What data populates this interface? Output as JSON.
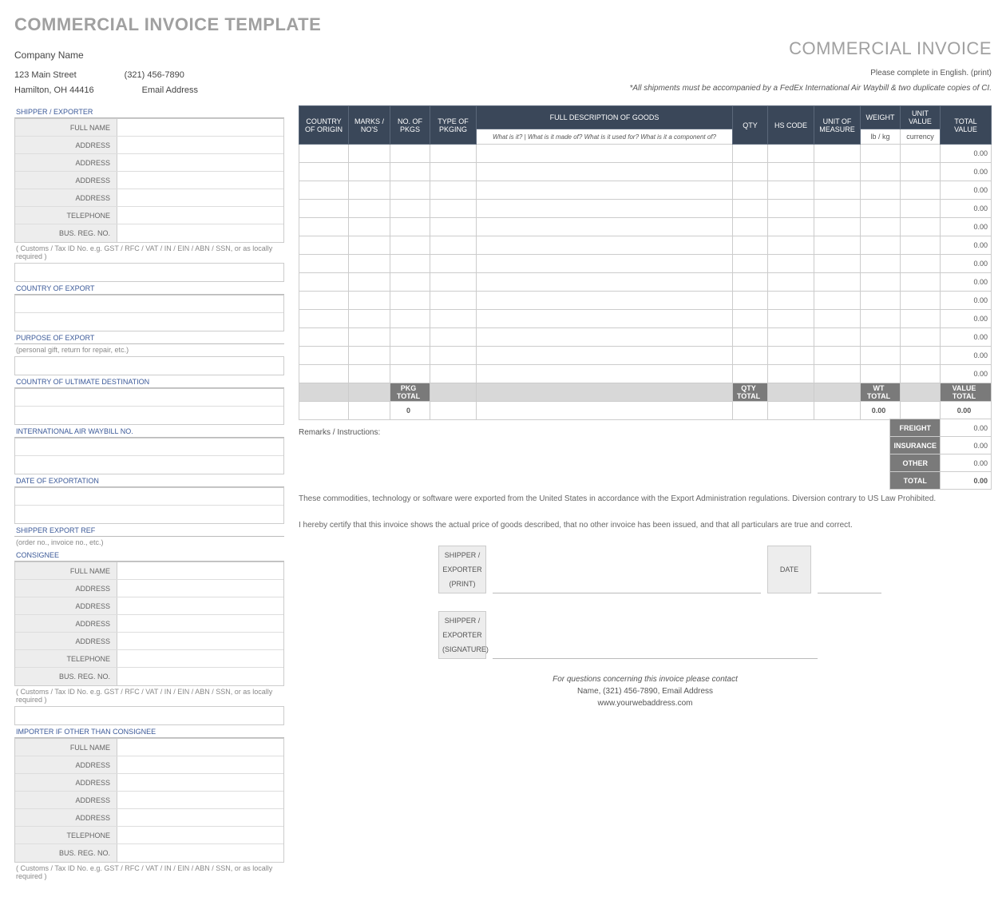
{
  "page_title": "COMMERCIAL INVOICE TEMPLATE",
  "doc_title": "COMMERCIAL INVOICE",
  "company": {
    "name": "Company Name",
    "street": "123 Main Street",
    "phone": "(321) 456-7890",
    "citystate": "Hamilton, OH  44416",
    "email": "Email Address"
  },
  "notes": {
    "complete": "Please complete in English. (print)",
    "shipments": "*All shipments must be accompanied by a FedEx International Air Waybill & two duplicate copies of CI."
  },
  "left": {
    "shipper_hdr": "SHIPPER / EXPORTER",
    "fields_party": [
      "FULL NAME",
      "ADDRESS",
      "ADDRESS",
      "ADDRESS",
      "ADDRESS",
      "TELEPHONE",
      "BUS. REG. NO."
    ],
    "customs_hint": "( Customs / Tax ID No. e.g. GST / RFC / VAT / IN / EIN / ABN / SSN, or as locally required )",
    "country_export": "COUNTRY OF EXPORT",
    "purpose_export": "PURPOSE OF EXPORT",
    "purpose_hint": "(personal gift, return for repair, etc.)",
    "ultimate_dest": "COUNTRY OF ULTIMATE DESTINATION",
    "waybill": "INTERNATIONAL AIR WAYBILL NO.",
    "date_export": "DATE OF EXPORTATION",
    "shipper_ref": "SHIPPER EXPORT REF",
    "shipper_ref_hint": "(order no., invoice no., etc.)",
    "consignee_hdr": "CONSIGNEE",
    "importer_hdr": "IMPORTER IF OTHER THAN CONSIGNEE"
  },
  "goods": {
    "headers": {
      "country": "COUNTRY OF ORIGIN",
      "marks": "MARKS / NO'S",
      "no_pkgs": "NO. OF PKGS",
      "type_pkg": "TYPE OF PKGING",
      "desc": "FULL DESCRIPTION OF GOODS",
      "desc_sub": "What is it? | What is it made of? What is it used for? What is it a component of?",
      "qty": "QTY",
      "hs": "HS CODE",
      "uom": "UNIT OF MEASURE",
      "weight": "WEIGHT",
      "weight_sub": "lb / kg",
      "unit_val": "UNIT VALUE",
      "unit_val_sub": "currency",
      "total_val": "TOTAL VALUE"
    },
    "row_total": "0.00",
    "num_rows": 13,
    "totals_labels": {
      "pkg": "PKG TOTAL",
      "qty": "QTY TOTAL",
      "wt": "WT TOTAL",
      "val": "VALUE TOTAL"
    },
    "totals_values": {
      "pkg": "0",
      "wt": "0.00",
      "val": "0.00"
    }
  },
  "remarks_label": "Remarks / Instructions:",
  "charges": {
    "freight": {
      "label": "FREIGHT",
      "value": "0.00"
    },
    "insurance": {
      "label": "INSURANCE",
      "value": "0.00"
    },
    "other": {
      "label": "OTHER",
      "value": "0.00"
    },
    "total": {
      "label": "TOTAL",
      "value": "0.00"
    }
  },
  "legal": {
    "l1": "These commodities, technology or software were exported from the United States in accordance with the Export Administration regulations.  Diversion contrary to US Law Prohibited.",
    "l2": "I hereby certify that this invoice shows the actual price of goods described, that no other invoice has been issued, and that all particulars are true and correct."
  },
  "sig": {
    "print": {
      "a": "SHIPPER /",
      "b": "EXPORTER",
      "c": "(PRINT)"
    },
    "date": "DATE",
    "signature": {
      "a": "SHIPPER /",
      "b": "EXPORTER",
      "c": "(SIGNATURE)"
    }
  },
  "footer": {
    "q": "For questions concerning this invoice please contact",
    "contact": "Name, (321) 456-7890, Email Address",
    "web": "www.yourwebaddress.com"
  },
  "colors": {
    "header_bg": "#3a4759",
    "grey_fill": "#ededed",
    "dark_grey": "#7a7a7a",
    "blue_text": "#3b5998"
  }
}
